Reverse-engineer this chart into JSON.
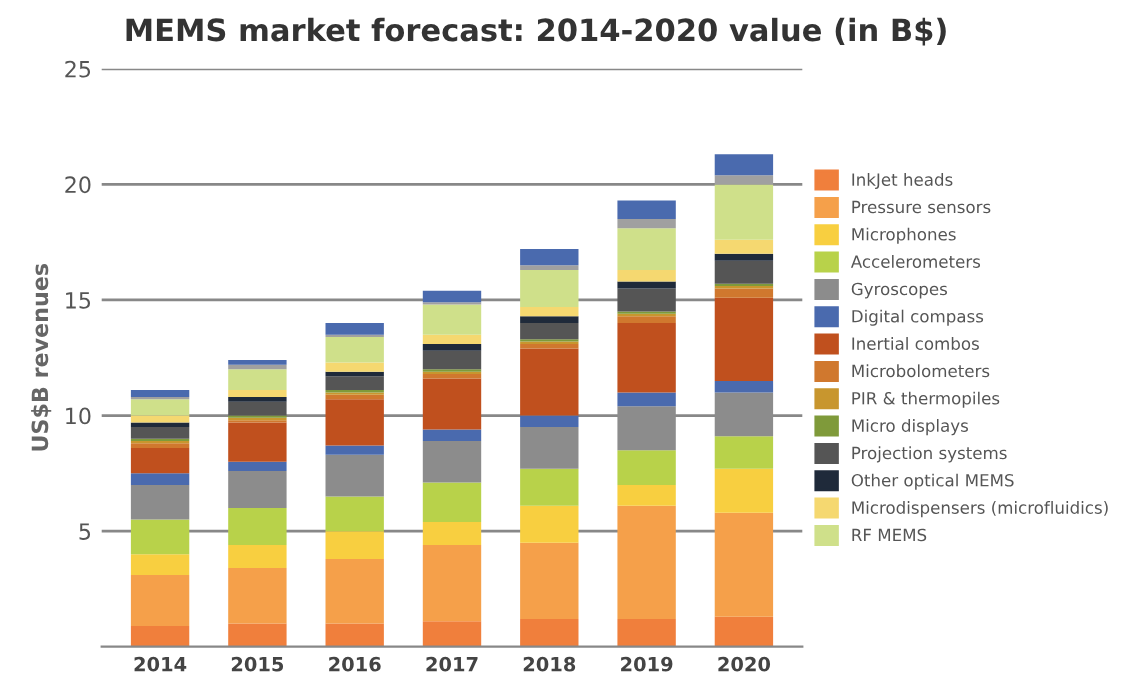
{
  "chart_data": {
    "type": "bar",
    "stacked": true,
    "title": "MEMS market forecast: 2014-2020 value (in B$)",
    "ylabel": "US$B revenues",
    "categories": [
      "2014",
      "2015",
      "2016",
      "2017",
      "2018",
      "2019",
      "2020"
    ],
    "ylim": [
      0,
      25
    ],
    "yticks": [
      5,
      10,
      15,
      20,
      25
    ],
    "grid": "y",
    "legend": "right",
    "series": [
      {
        "name": "InkJet heads",
        "color": "#f07f3c",
        "values": [
          0.9,
          1.0,
          1.0,
          1.1,
          1.2,
          1.2,
          1.3
        ]
      },
      {
        "name": "Pressure sensors",
        "color": "#f5a04a",
        "values": [
          2.2,
          2.4,
          2.8,
          3.3,
          3.3,
          4.9,
          4.5
        ]
      },
      {
        "name": "Microphones",
        "color": "#f8cf40",
        "values": [
          0.9,
          1.0,
          1.2,
          1.0,
          1.6,
          0.9,
          1.9
        ]
      },
      {
        "name": "Accelerometers",
        "color": "#b8d24a",
        "values": [
          1.5,
          1.6,
          1.5,
          1.7,
          1.6,
          1.5,
          1.4
        ]
      },
      {
        "name": "Gyroscopes",
        "color": "#8c8c8c",
        "values": [
          1.5,
          1.6,
          1.8,
          1.8,
          1.8,
          1.9,
          1.9
        ]
      },
      {
        "name": "Digital compass",
        "color": "#4a6aae",
        "values": [
          0.5,
          0.4,
          0.4,
          0.5,
          0.5,
          0.6,
          0.5
        ]
      },
      {
        "name": "Inertial combos",
        "color": "#c0501e",
        "values": [
          1.1,
          1.7,
          2.0,
          2.2,
          2.9,
          3.0,
          3.6
        ]
      },
      {
        "name": "Microbolometers",
        "color": "#d0782e",
        "values": [
          0.2,
          0.1,
          0.2,
          0.2,
          0.2,
          0.3,
          0.4
        ]
      },
      {
        "name": "PIR & thermopiles",
        "color": "#c8962e",
        "values": [
          0.1,
          0.1,
          0.1,
          0.1,
          0.1,
          0.1,
          0.1
        ]
      },
      {
        "name": "Micro displays",
        "color": "#7f9a3a",
        "values": [
          0.1,
          0.1,
          0.1,
          0.1,
          0.1,
          0.1,
          0.1
        ]
      },
      {
        "name": "Projection systems",
        "color": "#555555",
        "values": [
          0.5,
          0.6,
          0.6,
          0.8,
          0.7,
          1.0,
          1.0
        ]
      },
      {
        "name": "Other optical MEMS",
        "color": "#1f2a3a",
        "values": [
          0.2,
          0.2,
          0.2,
          0.3,
          0.3,
          0.3,
          0.3
        ]
      },
      {
        "name": "Microdispensers (microfluidics)",
        "color": "#f5d870",
        "values": [
          0.3,
          0.3,
          0.4,
          0.4,
          0.4,
          0.5,
          0.6
        ]
      },
      {
        "name": "RF MEMS",
        "color": "#cfe08a",
        "values": [
          0.7,
          0.9,
          1.1,
          1.3,
          1.6,
          1.8,
          2.4
        ]
      },
      {
        "color": "#a0a0a0",
        "values": [
          0.1,
          0.2,
          0.1,
          0.1,
          0.2,
          0.4,
          0.4
        ]
      },
      {
        "color": "#4a6aae",
        "values": [
          0.3,
          0.2,
          0.5,
          0.5,
          0.7,
          0.8,
          0.9
        ]
      }
    ]
  }
}
